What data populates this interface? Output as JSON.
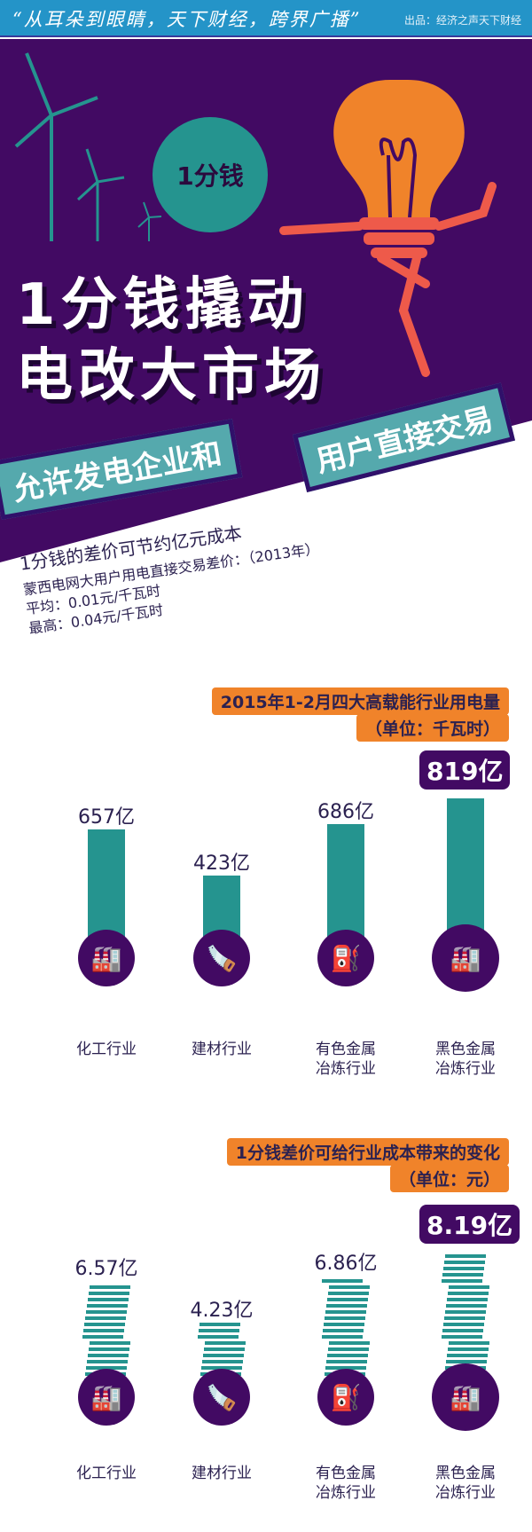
{
  "header": {
    "slogan": "“从耳朵到眼睛，天下财经，跨界广播”",
    "credit": "出品：经济之声天下财经"
  },
  "hero": {
    "coin": "1分钱",
    "title_line1": "1分钱撬动",
    "title_line2": "电改大市场",
    "band_left": "允许发电企业和",
    "band_right": "用户直接交易"
  },
  "intro": {
    "line1": "1分钱的差价可节约亿元成本",
    "line2": "蒙西电网大用户用电直接交易差价：（2013年）",
    "line3": "平均：0.01元/千瓦时",
    "line4": "最高：0.04元/千瓦时"
  },
  "colors": {
    "purple": "#420a63",
    "teal": "#25948f",
    "orange": "#f0832a",
    "blue": "#2494c8"
  },
  "chart_data": [
    {
      "type": "bar",
      "title": "2015年1-2月四大高载能行业用电量",
      "subtitle": "（单位：千瓦时）",
      "categories": [
        "化工行业",
        "建材行业",
        "有色金属\n冶炼行业",
        "黑色金属\n冶炼行业"
      ],
      "icons": [
        "factory-icon",
        "saw-icon",
        "oil-pump-icon",
        "smokestack-icon"
      ],
      "values": [
        657,
        423,
        686,
        819
      ],
      "data_labels": [
        "657亿",
        "423亿",
        "686亿",
        "819亿"
      ],
      "highlight": 3
    },
    {
      "type": "bar",
      "title": "1分钱差价可给行业成本带来的变化",
      "subtitle": "（单位：元）",
      "categories": [
        "化工行业",
        "建材行业",
        "有色金属\n冶炼行业",
        "黑色金属\n冶炼行业"
      ],
      "icons": [
        "factory-icon",
        "saw-icon",
        "oil-pump-icon",
        "smokestack-icon"
      ],
      "values": [
        6.57,
        4.23,
        6.86,
        8.19
      ],
      "data_labels": [
        "6.57亿",
        "4.23亿",
        "6.86亿",
        "8.19亿"
      ],
      "highlight": 3
    }
  ]
}
